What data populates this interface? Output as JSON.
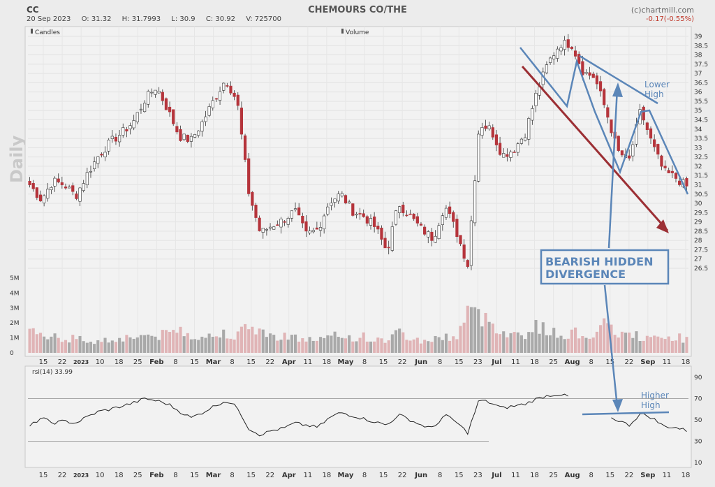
{
  "header": {
    "ticker": "CC",
    "date": "20 Sep 2023",
    "open": "O: 31.32",
    "high": "H: 31.7993",
    "low": "L: 30.9",
    "close": "C: 30.92",
    "volume": "V: 725700",
    "title": "CHEMOURS CO/THE",
    "credit": "(c)chartmill.com",
    "change": "-0.17(-0.55%)",
    "period": "Daily"
  },
  "legend": {
    "candles": "Candles",
    "volume": "Volume",
    "rsi": "rsi(14) 33.99"
  },
  "annotations": {
    "lower_high": [
      "Lower",
      "High"
    ],
    "higher_high": [
      "Higher",
      "High"
    ],
    "divergence": [
      "BEARISH HIDDEN",
      "DIVERGENCE"
    ]
  },
  "colors": {
    "up": "#ffffff",
    "down": "#b5343b",
    "vol_up": "#a9a9a9",
    "vol_down": "#e0b4b6",
    "trend_blue": "#5b86b8",
    "trend_red": "#9c2f34"
  },
  "chart_data": {
    "type": "candlestick",
    "price_axis": [
      "39",
      "38.5",
      "38",
      "37.5",
      "37",
      "36.5",
      "36",
      "35.5",
      "35",
      "34.5",
      "34",
      "33.5",
      "33",
      "32.5",
      "32",
      "31.5",
      "31",
      "30.5",
      "30",
      "29.5",
      "29",
      "28.5",
      "28",
      "27.5",
      "27",
      "26.5"
    ],
    "ylim": [
      26,
      39.2
    ],
    "volume_axis": [
      "5M",
      "4M",
      "3M",
      "2M",
      "1M",
      "0"
    ],
    "rsi_axis": [
      "90",
      "70",
      "50",
      "30",
      "10"
    ],
    "rsi_levels": [
      70,
      30
    ],
    "x_ticks": [
      "15",
      "22",
      "2023",
      "10",
      "18",
      "25",
      "Feb",
      "8",
      "15",
      "Mar",
      "8",
      "15",
      "22",
      "Apr",
      "11",
      "18",
      "May",
      "8",
      "15",
      "22",
      "Jun",
      "8",
      "15",
      "23",
      "Jul",
      "11",
      "18",
      "25",
      "Aug",
      "8",
      "15",
      "22",
      "Sep",
      "11",
      "18"
    ],
    "close_path": [
      31.0,
      30.2,
      31.2,
      31.0,
      30.4,
      31.6,
      32.6,
      33.3,
      33.8,
      34.4,
      35.6,
      36.3,
      35.0,
      33.6,
      33.4,
      34.4,
      35.6,
      36.7,
      35.5,
      30.6,
      28.4,
      28.8,
      29.1,
      29.6,
      28.3,
      28.6,
      30.1,
      30.5,
      29.6,
      29.3,
      28.7,
      27.4,
      30.0,
      29.3,
      28.6,
      28.1,
      29.9,
      28.5,
      26.7,
      34.3,
      34.0,
      32.6,
      32.9,
      33.8,
      36.0,
      37.6,
      38.6,
      38.6,
      37.1,
      36.8,
      35.0,
      32.8,
      32.3,
      35.0,
      33.2,
      31.7,
      31.4,
      30.9
    ],
    "volume_m": [
      1.4,
      1.2,
      1.3,
      0.9,
      1.0,
      0.8,
      0.8,
      0.9,
      1.0,
      1.1,
      1.2,
      1.1,
      1.3,
      1.6,
      1.2,
      1.1,
      1.1,
      1.4,
      1.2,
      1.7,
      1.6,
      1.0,
      1.3,
      1.0,
      0.9,
      0.9,
      1.0,
      1.2,
      1.0,
      1.1,
      0.8,
      0.9,
      1.4,
      1.0,
      0.8,
      0.9,
      1.1,
      1.0,
      2.9,
      2.4,
      2.1,
      1.5,
      1.2,
      1.3,
      1.8,
      1.5,
      1.1,
      1.4,
      1.2,
      1.2,
      1.9,
      1.3,
      1.2,
      1.1,
      0.9,
      1.0,
      1.1,
      0.9
    ],
    "rsi_path": [
      44,
      52,
      47,
      49,
      47,
      53,
      58,
      60,
      63,
      66,
      70,
      68,
      65,
      58,
      52,
      57,
      63,
      68,
      62,
      42,
      36,
      40,
      42,
      47,
      45,
      43,
      52,
      57,
      54,
      51,
      48,
      45,
      55,
      50,
      45,
      42,
      55,
      48,
      38,
      69,
      66,
      61,
      63,
      65,
      70,
      73,
      74,
      71,
      66,
      60,
      53,
      50,
      45,
      56,
      52,
      44,
      43,
      40
    ]
  }
}
